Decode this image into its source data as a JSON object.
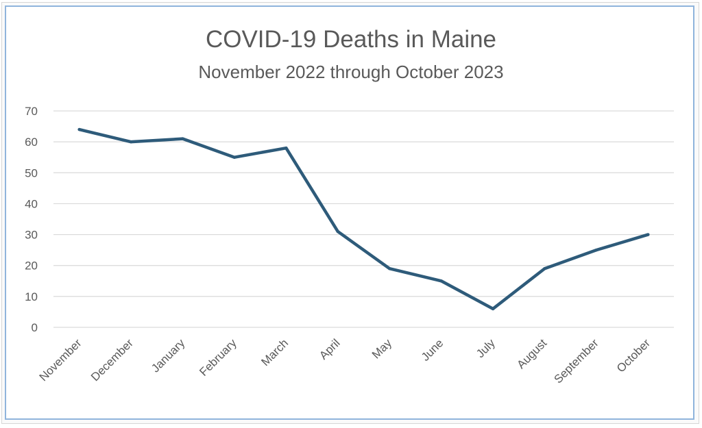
{
  "chart_data": {
    "type": "line",
    "title": "COVID-19 Deaths in Maine",
    "subtitle": "November 2022 through October 2023",
    "xlabel": "",
    "ylabel": "",
    "categories": [
      "November",
      "December",
      "January",
      "February",
      "March",
      "April",
      "May",
      "June",
      "July",
      "August",
      "September",
      "October"
    ],
    "values": [
      64,
      60,
      61,
      55,
      58,
      31,
      19,
      15,
      6,
      19,
      25,
      30
    ],
    "ylim": [
      0,
      70
    ],
    "yticks": [
      "0",
      "10",
      "20",
      "30",
      "40",
      "50",
      "60",
      "70"
    ],
    "grid": "horizontal",
    "legend": "none",
    "line_color": "#2e5b7a",
    "grid_color": "#d9d9d9"
  }
}
